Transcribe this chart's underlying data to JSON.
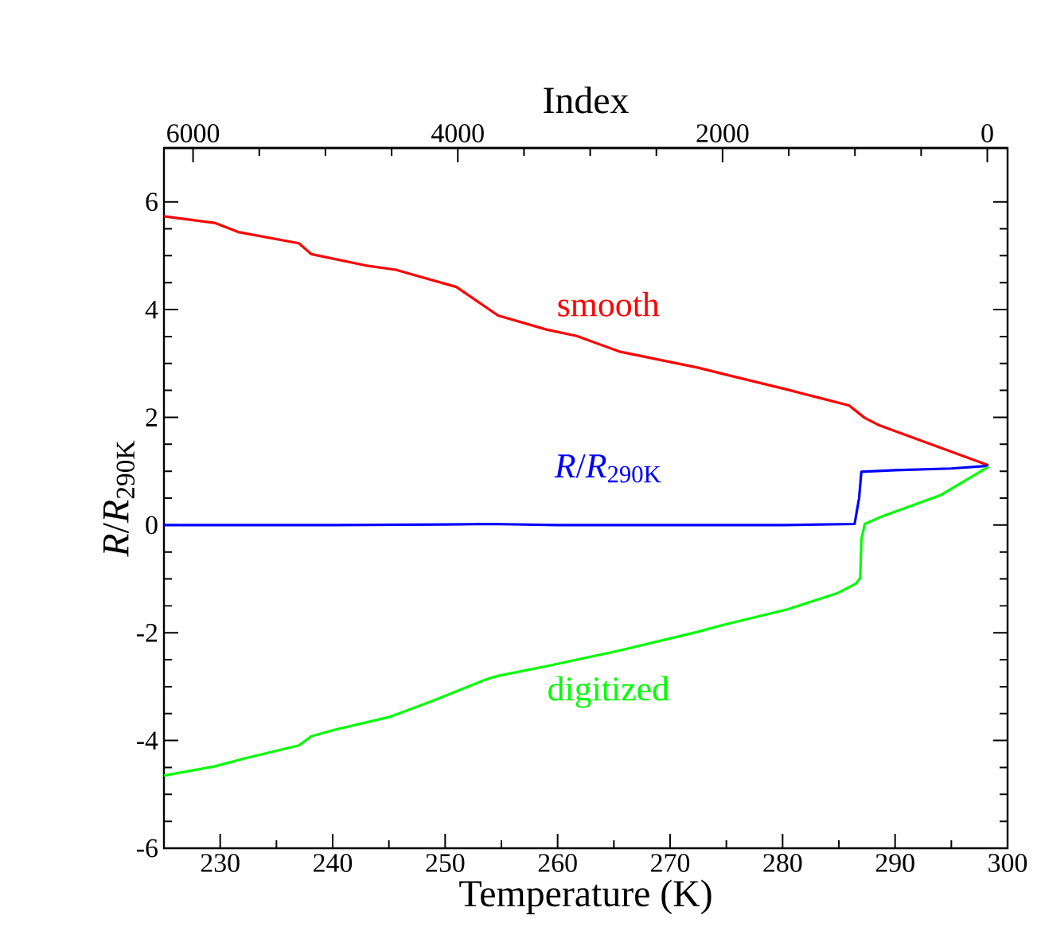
{
  "chart_data": {
    "type": "line",
    "xlabel": "Temperature  (K)",
    "ylabel": "*R*/*R*$_{290K}$",
    "x2label": "Index",
    "xlim": [
      225,
      300
    ],
    "xticks": [
      230,
      240,
      250,
      260,
      270,
      280,
      290,
      300
    ],
    "ylim": [
      -6,
      7
    ],
    "yticks": [
      -6,
      -4,
      -2,
      0,
      2,
      4,
      6
    ],
    "x2lim": [
      6220,
      -153
    ],
    "x2ticks": [
      0,
      2000,
      4000,
      6000
    ],
    "legend": false,
    "grid": false,
    "marker": "none",
    "line_style": "solid",
    "series": [
      {
        "name": "smooth",
        "color": "#ff0000",
        "x": [
          225,
          229.5,
          231.6,
          237,
          238.1,
          242.9,
          245.6,
          251,
          254.7,
          259,
          261.7,
          265.5,
          272.5,
          275.2,
          280.5,
          285.9,
          287.3,
          288.6,
          298.3
        ],
        "values": [
          5.73,
          5.61,
          5.44,
          5.23,
          5.03,
          4.82,
          4.74,
          4.42,
          3.89,
          3.63,
          3.51,
          3.22,
          2.92,
          2.78,
          2.51,
          2.22,
          1.99,
          1.85,
          1.11
        ]
      },
      {
        "name": "*R*/*R*$_{290K}$",
        "color": "#0000ff",
        "x": [
          225,
          240,
          250,
          254,
          260,
          270,
          280,
          286.4,
          286.8,
          287,
          290,
          295,
          298.3
        ],
        "values": [
          0,
          0,
          0.01,
          0.02,
          0,
          0,
          0,
          0.02,
          0.5,
          0.99,
          1.02,
          1.05,
          1.1
        ]
      },
      {
        "name": "digitized",
        "color": "#00ff00",
        "x": [
          225,
          229.5,
          232.2,
          237,
          238.1,
          240.2,
          245.1,
          248.8,
          253.7,
          254.7,
          259,
          265.5,
          272.5,
          274.6,
          280.5,
          284.8,
          286.5,
          286.9,
          287,
          287.3,
          288.6,
          294,
          298.3
        ],
        "values": [
          -4.65,
          -4.48,
          -4.33,
          -4.09,
          -3.92,
          -3.8,
          -3.56,
          -3.27,
          -2.86,
          -2.8,
          -2.62,
          -2.33,
          -1.98,
          -1.86,
          -1.56,
          -1.27,
          -1.09,
          -0.98,
          -0.27,
          0.02,
          0.14,
          0.55,
          1.08
        ]
      }
    ]
  }
}
